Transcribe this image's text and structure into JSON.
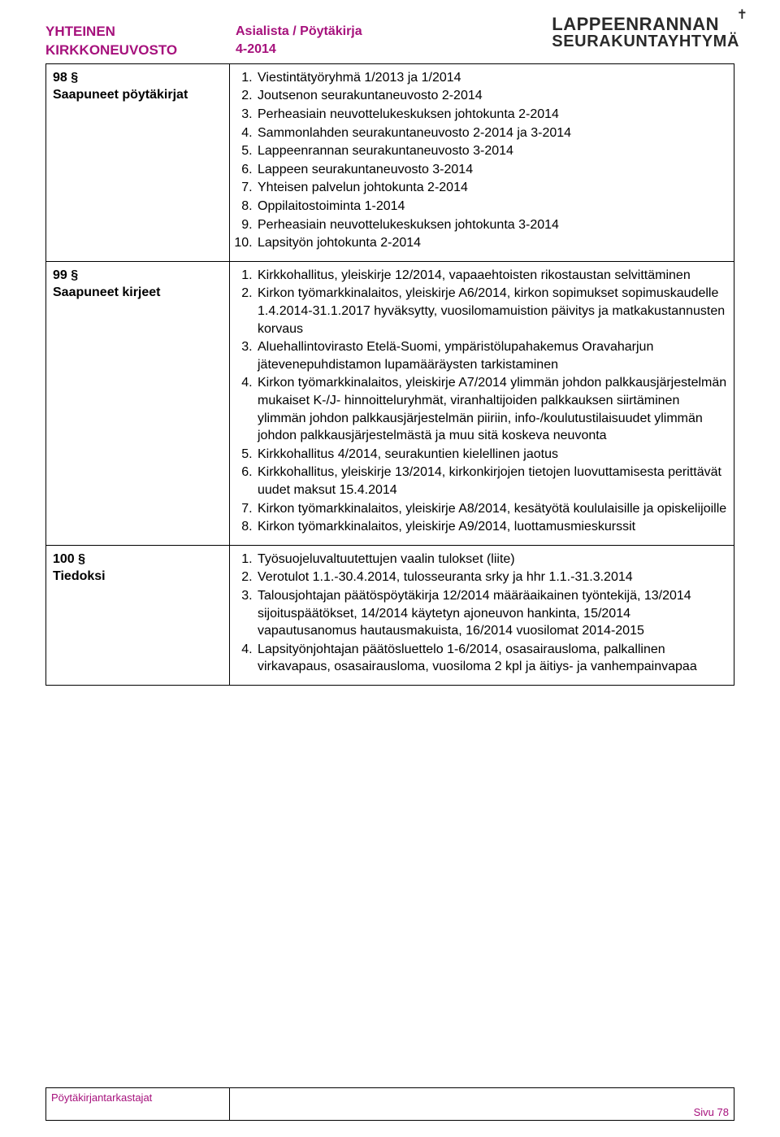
{
  "header": {
    "left_line1": "YHTEINEN",
    "left_line2": "KIRKKONEUVOSTO",
    "mid_line1": "Asialista / Pöytäkirja",
    "mid_line2": "4-2014",
    "right_line1": "LAPPEENRANNAN",
    "right_line2": "SEURAKUNTAYHTYMÄ",
    "cross": "✝"
  },
  "sections": [
    {
      "num": "98 §",
      "title": "Saapuneet pöytäkirjat",
      "items": [
        "Viestintätyöryhmä 1/2013 ja 1/2014",
        "Joutsenon seurakuntaneuvosto 2-2014",
        "Perheasiain neuvottelukeskuksen johtokunta 2-2014",
        "Sammonlahden seurakuntaneuvosto 2-2014 ja 3-2014",
        "Lappeenrannan seurakuntaneuvosto 3-2014",
        "Lappeen seurakuntaneuvosto 3-2014",
        "Yhteisen palvelun johtokunta 2-2014",
        "Oppilaitostoiminta 1-2014",
        "Perheasiain neuvottelukeskuksen johtokunta 3-2014",
        "Lapsityön johtokunta 2-2014"
      ]
    },
    {
      "num": "99 §",
      "title": "Saapuneet kirjeet",
      "items": [
        "Kirkkohallitus, yleiskirje 12/2014, vapaaehtoisten rikostaustan selvittäminen",
        "Kirkon työmarkkinalaitos, yleiskirje A6/2014, kirkon sopimukset sopimuskaudelle 1.4.2014-31.1.2017 hyväksytty, vuosilomamuistion päivitys ja matkakustannusten korvaus",
        "Aluehallintovirasto Etelä-Suomi, ympäristölupahakemus Oravaharjun jätevenepuhdistamon lupamääräysten tarkistaminen",
        "Kirkon työmarkkinalaitos, yleiskirje A7/2014 ylimmän johdon palkkausjärjestelmän mukaiset K-/J- hinnoitteluryhmät, viranhaltijoiden palkkauksen siirtäminen ylimmän johdon palkkausjärjestelmän piiriin, info-/koulutustilaisuudet ylimmän johdon palkkausjärjestelmästä ja muu sitä koskeva neuvonta",
        "Kirkkohallitus 4/2014, seurakuntien kielellinen jaotus",
        "Kirkkohallitus, yleiskirje 13/2014, kirkonkirjojen tietojen luovuttamisesta perittävät uudet maksut 15.4.2014",
        "Kirkon työmarkkinalaitos, yleiskirje A8/2014, kesätyötä koululaisille ja opiskelijoille",
        "Kirkon työmarkkinalaitos, yleiskirje A9/2014, luottamusmieskurssit"
      ]
    },
    {
      "num": "100 §",
      "title": "Tiedoksi",
      "items": [
        "Työsuojeluvaltuutettujen vaalin tulokset (liite)",
        "Verotulot 1.1.-30.4.2014, tulosseuranta srky ja hhr 1.1.-31.3.2014",
        "Talousjohtajan päätöspöytäkirja 12/2014 määräaikainen työntekijä, 13/2014 sijoituspäätökset, 14/2014 käytetyn ajoneuvon hankinta, 15/2014 vapautusanomus hautausmakuista, 16/2014 vuosilomat 2014-2015",
        "Lapsityönjohtajan päätösluettelo 1-6/2014, osasairausloma, palkallinen virkavapaus, osasairausloma, vuosiloma 2 kpl ja äitiys- ja vanhempainvapaa"
      ]
    }
  ],
  "footer": {
    "left": "Pöytäkirjantarkastajat",
    "page": "Sivu 78"
  }
}
